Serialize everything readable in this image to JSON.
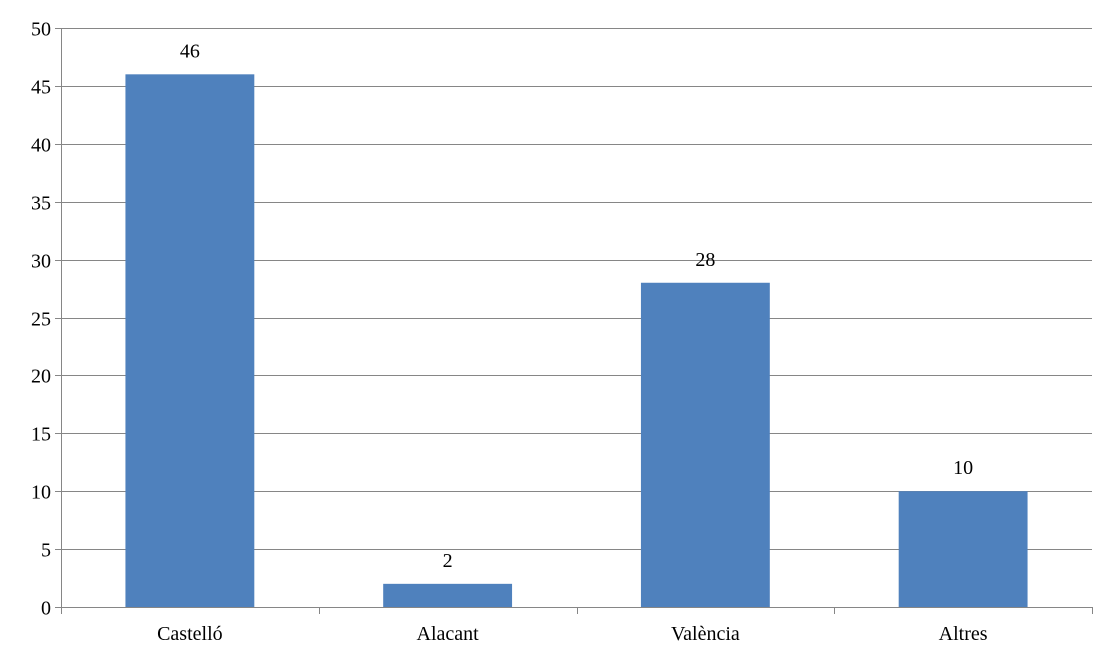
{
  "chart_data": {
    "type": "bar",
    "categories": [
      "Castelló",
      "Alacant",
      "València",
      "Altres"
    ],
    "values": [
      46,
      2,
      28,
      10
    ],
    "value_labels": [
      "46",
      "2",
      "28",
      "10"
    ],
    "y_ticks": [
      0,
      5,
      10,
      15,
      20,
      25,
      30,
      35,
      40,
      45,
      50
    ],
    "y_tick_labels": [
      "0",
      "5",
      "10",
      "15",
      "20",
      "25",
      "30",
      "35",
      "40",
      "45",
      "50"
    ],
    "ylim": [
      0,
      50
    ],
    "grid": true,
    "data_labels": true,
    "bar_color": "#4f81bd",
    "grid_color": "#868686"
  }
}
